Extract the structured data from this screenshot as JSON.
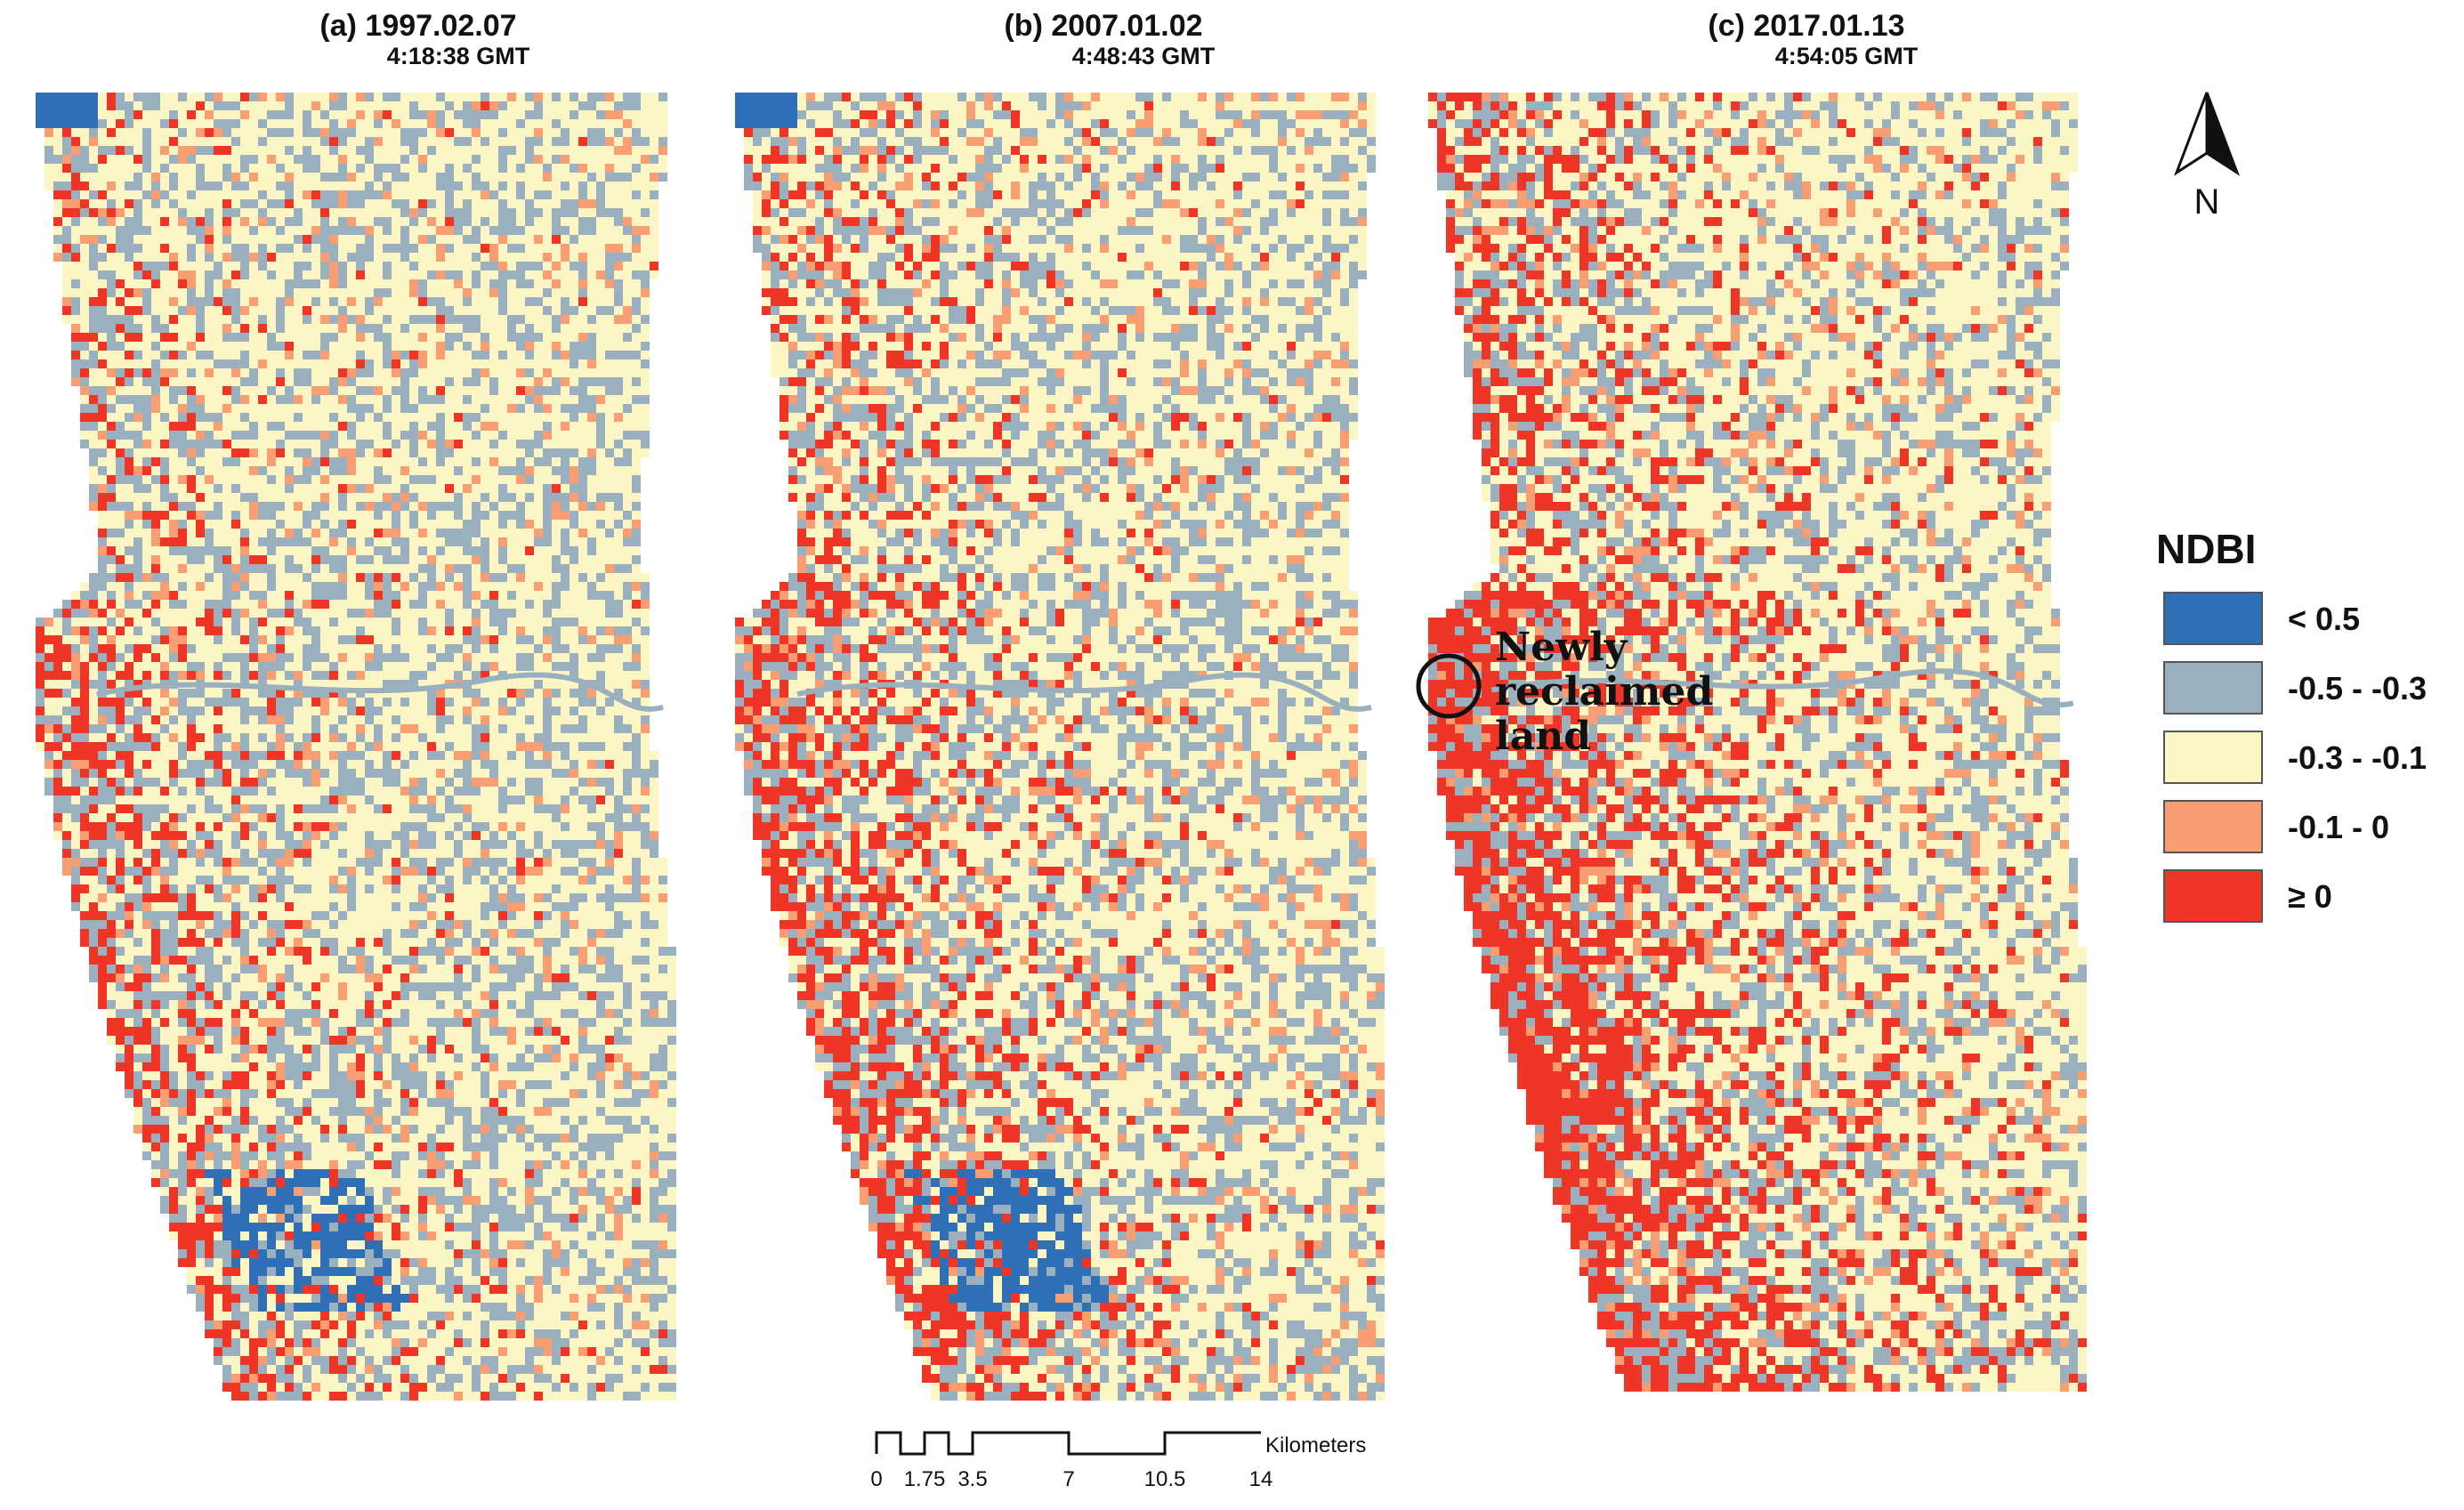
{
  "panels": [
    {
      "title": "(a) 1997.02.07",
      "time": "4:18:38 GMT"
    },
    {
      "title": "(b) 2007.01.02",
      "time": "4:48:43 GMT"
    },
    {
      "title": "(c) 2017.01.13",
      "time": "4:54:05 GMT"
    }
  ],
  "north_label": "N",
  "legend": {
    "title": "NDBI",
    "items": [
      {
        "label": "< 0.5",
        "color": "#2e6fb6"
      },
      {
        "label": "-0.5 - -0.3",
        "color": "#9bb0bf"
      },
      {
        "label": "-0.3 - -0.1",
        "color": "#fbf6c3"
      },
      {
        "label": "-0.1 - 0",
        "color": "#f99e72"
      },
      {
        "label": "≥ 0",
        "color": "#ee3526"
      }
    ]
  },
  "annotation": {
    "line1": "Newly",
    "line2": "reclaimed",
    "line3": "land"
  },
  "scalebar": {
    "unit": "Kilometers",
    "ticks": [
      "0",
      "1.75",
      "3.5",
      "7",
      "10.5",
      "14"
    ]
  }
}
